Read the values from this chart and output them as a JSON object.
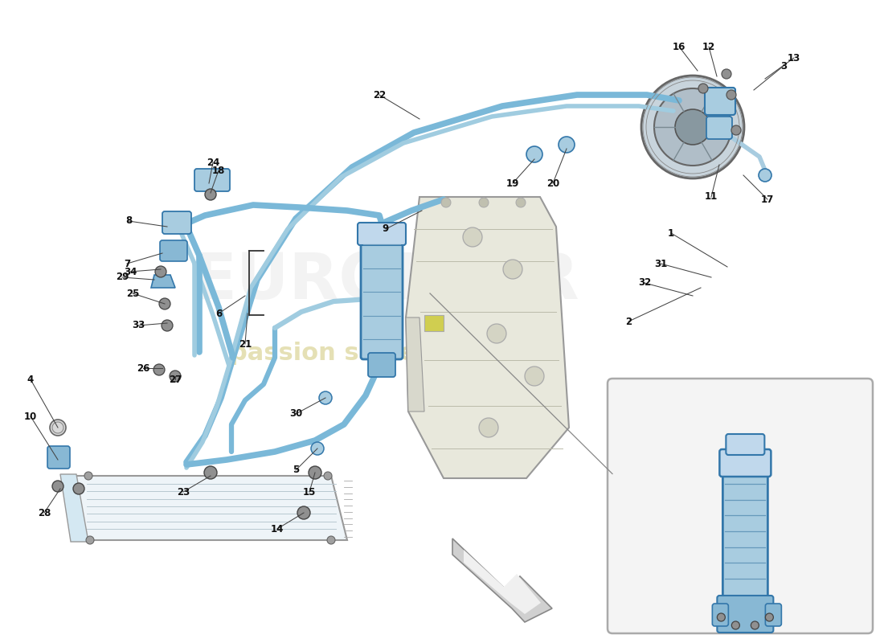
{
  "bg_color": "#ffffff",
  "pipe_color_main": "#7ab8d8",
  "pipe_color_sec": "#a0cce0",
  "component_blue": "#a8cce0",
  "component_blue2": "#c0d8ec",
  "bracket_blue": "#88b8d4",
  "screw_gray": "#909090",
  "frame_fill": "#e8e8dc",
  "condenser_fill": "#eef4f8",
  "detail_box_fill": "#f4f4f4",
  "label_color": "#111111",
  "line_color": "#444444",
  "compressor_outer": "#c8d4dc",
  "compressor_mid": "#b0bec8",
  "compressor_hub": "#8898a0",
  "part_labels": [
    [
      1,
      8.35,
      5.1,
      9.05,
      4.68
    ],
    [
      2,
      7.82,
      4.0,
      8.72,
      4.42
    ],
    [
      3,
      9.75,
      7.18,
      9.38,
      6.88
    ],
    [
      4,
      0.38,
      3.28,
      0.72,
      2.68
    ],
    [
      5,
      3.68,
      2.15,
      3.95,
      2.42
    ],
    [
      6,
      2.72,
      4.1,
      3.05,
      4.32
    ],
    [
      7,
      1.58,
      4.72,
      2.02,
      4.85
    ],
    [
      8,
      1.6,
      5.25,
      2.08,
      5.18
    ],
    [
      9,
      4.8,
      5.15,
      5.25,
      5.38
    ],
    [
      10,
      0.38,
      2.82,
      0.72,
      2.28
    ],
    [
      11,
      8.85,
      5.55,
      8.95,
      5.95
    ],
    [
      12,
      8.82,
      7.42,
      8.92,
      7.05
    ],
    [
      13,
      9.88,
      7.28,
      9.52,
      7.02
    ],
    [
      14,
      3.45,
      1.42,
      3.78,
      1.62
    ],
    [
      15,
      3.85,
      1.88,
      3.92,
      2.12
    ],
    [
      16,
      8.45,
      7.42,
      8.68,
      7.12
    ],
    [
      17,
      9.55,
      5.52,
      9.25,
      5.82
    ],
    [
      18,
      2.72,
      5.88,
      2.62,
      5.6
    ],
    [
      19,
      6.38,
      5.72,
      6.65,
      6.02
    ],
    [
      20,
      6.88,
      5.72,
      7.05,
      6.15
    ],
    [
      21,
      3.05,
      3.72,
      3.08,
      4.1
    ],
    [
      22,
      4.72,
      6.82,
      5.22,
      6.52
    ],
    [
      23,
      2.28,
      1.88,
      2.62,
      2.08
    ],
    [
      24,
      2.65,
      5.98,
      2.6,
      5.72
    ],
    [
      25,
      1.65,
      4.35,
      2.05,
      4.22
    ],
    [
      26,
      1.78,
      3.42,
      2.02,
      3.42
    ],
    [
      27,
      2.18,
      3.28,
      2.18,
      3.32
    ],
    [
      28,
      0.55,
      1.62,
      0.75,
      1.92
    ],
    [
      29,
      1.52,
      4.55,
      1.92,
      4.52
    ],
    [
      30,
      3.68,
      2.85,
      4.05,
      3.05
    ],
    [
      31,
      8.22,
      4.72,
      8.85,
      4.55
    ],
    [
      32,
      8.02,
      4.48,
      8.62,
      4.32
    ],
    [
      33,
      1.72,
      3.95,
      2.08,
      3.98
    ],
    [
      34,
      1.62,
      4.62,
      2.0,
      4.65
    ]
  ]
}
